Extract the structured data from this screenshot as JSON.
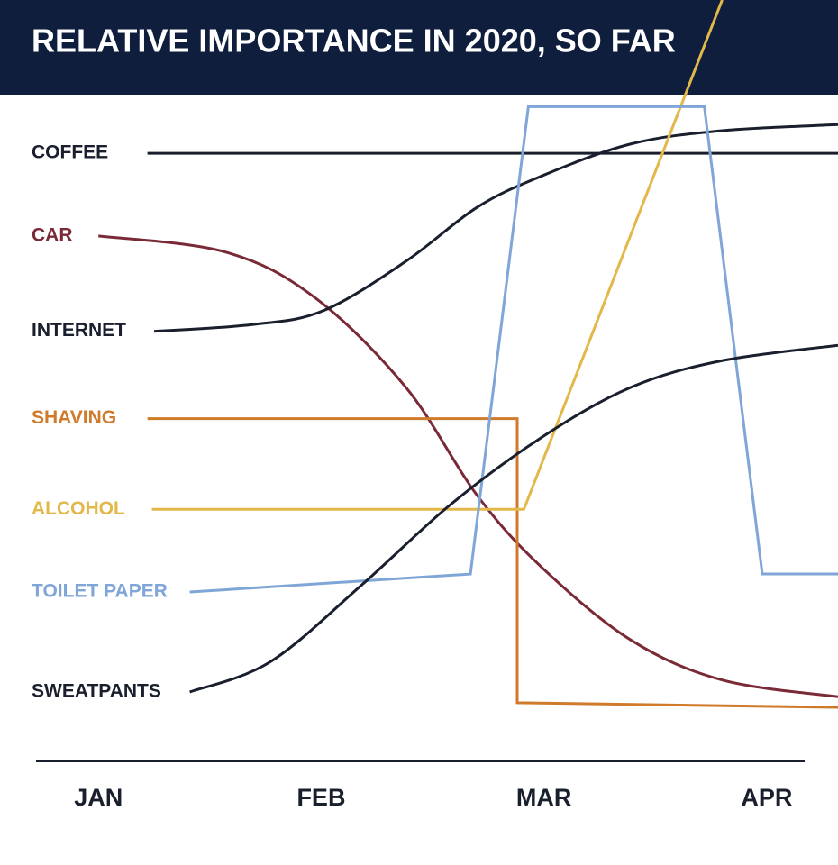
{
  "chart_data": {
    "type": "line",
    "title": "RELATIVE IMPORTANCE IN 2020, SO FAR",
    "xlim": [
      0.72,
      4.32
    ],
    "ylim": [
      0,
      100
    ],
    "xticks": [
      {
        "value": 1,
        "label": "JAN"
      },
      {
        "value": 2,
        "label": "FEB"
      },
      {
        "value": 3,
        "label": "MAR"
      },
      {
        "value": 4,
        "label": "APR"
      }
    ],
    "series": [
      {
        "name": "COFFEE",
        "color": "#1a1f2e",
        "smooth": false,
        "x": [
          1.22,
          4.32
        ],
        "values": [
          91.2,
          91.2
        ]
      },
      {
        "name": "CAR",
        "color": "#7a2a36",
        "smooth": true,
        "x": [
          1.0,
          1.57,
          1.97,
          2.38,
          2.7,
          2.99,
          3.39,
          3.8,
          4.32
        ],
        "values": [
          78.8,
          76.4,
          69.6,
          56.1,
          39.9,
          29.1,
          18.2,
          12.2,
          9.7
        ]
      },
      {
        "name": "INTERNET",
        "color": "#1a1f2e",
        "smooth": true,
        "x": [
          1.25,
          1.69,
          2.01,
          2.38,
          2.7,
          2.99,
          3.39,
          3.8,
          4.32
        ],
        "values": [
          64.5,
          65.5,
          67.6,
          75.0,
          83.1,
          87.8,
          92.6,
          94.6,
          95.5
        ]
      },
      {
        "name": "SHAVING",
        "color": "#d07a2c",
        "smooth": false,
        "x": [
          1.22,
          2.88,
          2.88,
          4.32
        ],
        "values": [
          51.4,
          51.4,
          8.8,
          8.1
        ]
      },
      {
        "name": "ALCOHOL",
        "color": "#e2b84a",
        "smooth": false,
        "x": [
          1.24,
          2.91,
          3.8
        ],
        "values": [
          37.8,
          37.8,
          114.2
        ]
      },
      {
        "name": "TOILET PAPER",
        "color": "#7fa6d6",
        "smooth": false,
        "x": [
          1.41,
          2.67,
          2.93,
          3.72,
          3.98,
          4.32
        ],
        "values": [
          25.4,
          28.1,
          98.2,
          98.2,
          28.1,
          28.1
        ]
      },
      {
        "name": "SWEATPANTS",
        "color": "#1a1f2e",
        "smooth": true,
        "x": [
          1.41,
          1.77,
          2.18,
          2.58,
          2.99,
          3.39,
          3.8,
          4.32
        ],
        "values": [
          10.4,
          14.9,
          26.4,
          38.5,
          48.6,
          56.1,
          60.1,
          62.4
        ]
      }
    ]
  }
}
